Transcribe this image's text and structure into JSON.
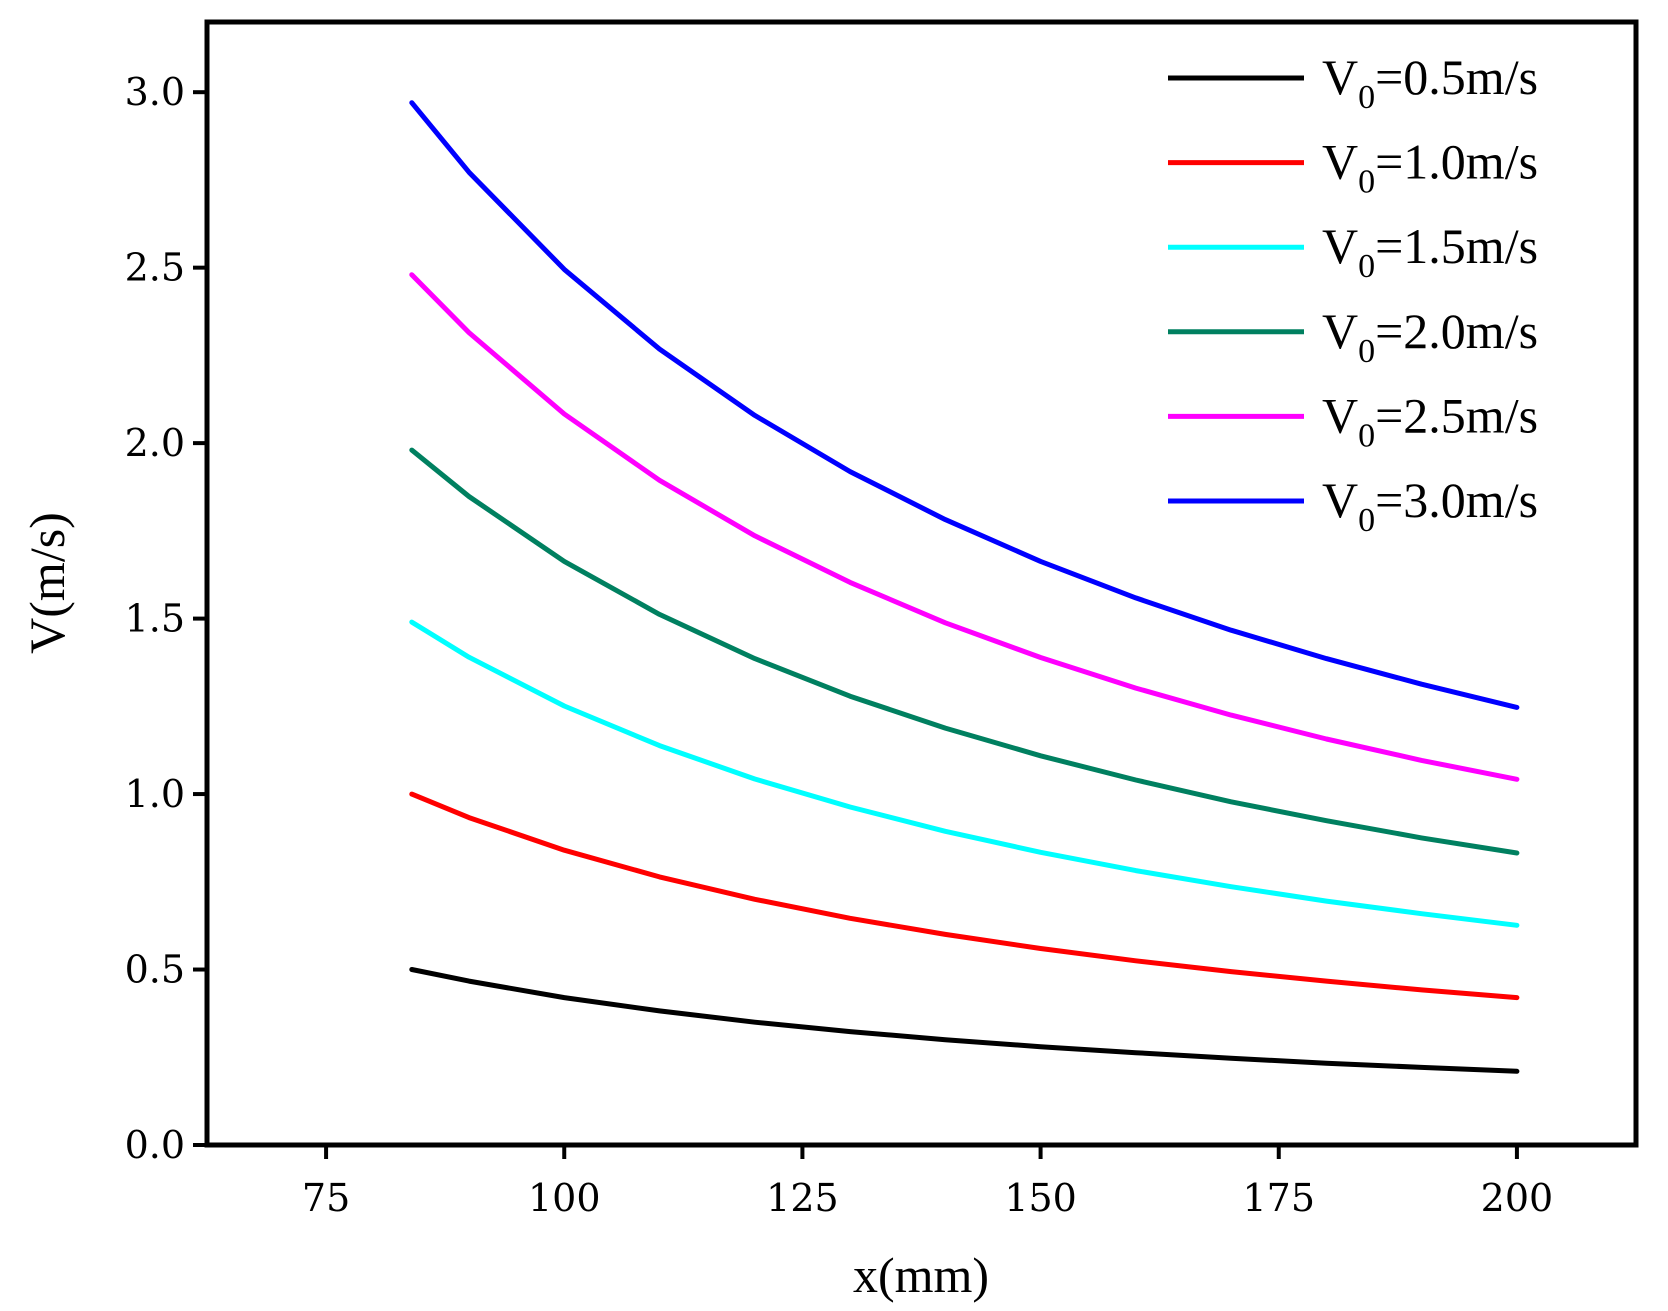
{
  "chart_data": {
    "type": "line",
    "title": "",
    "xlabel": "x(mm)",
    "ylabel": "V(m/s)",
    "xlim": [
      62.5,
      212.5
    ],
    "ylim": [
      0.0,
      3.2
    ],
    "xticks": [
      75,
      100,
      125,
      150,
      175,
      200
    ],
    "xtick_labels": [
      "75",
      "100",
      "125",
      "150",
      "175",
      "200"
    ],
    "yticks": [
      0.0,
      0.5,
      1.0,
      1.5,
      2.0,
      2.5,
      3.0
    ],
    "ytick_labels": [
      "0.0",
      "0.5",
      "1.0",
      "1.5",
      "2.0",
      "2.5",
      "3.0"
    ],
    "grid": false,
    "legend_position": "top-right",
    "x": [
      84,
      90,
      100,
      110,
      120,
      130,
      140,
      150,
      160,
      170,
      180,
      190,
      200
    ],
    "series": [
      {
        "name": "V0=0.5m/s",
        "label_main": "V",
        "label_sub": "0",
        "label_rest": "=0.5m/s",
        "color": "#000000",
        "values": [
          0.5,
          0.467,
          0.42,
          0.382,
          0.35,
          0.323,
          0.3,
          0.28,
          0.263,
          0.247,
          0.233,
          0.221,
          0.21
        ]
      },
      {
        "name": "V0=1.0m/s",
        "label_main": "V",
        "label_sub": "0",
        "label_rest": "=1.0m/s",
        "color": "#ff0000",
        "values": [
          1.0,
          0.933,
          0.84,
          0.764,
          0.7,
          0.646,
          0.6,
          0.56,
          0.525,
          0.494,
          0.467,
          0.442,
          0.42
        ]
      },
      {
        "name": "V0=1.5m/s",
        "label_main": "V",
        "label_sub": "0",
        "label_rest": "=1.5m/s",
        "color": "#00ffff",
        "values": [
          1.49,
          1.39,
          1.251,
          1.138,
          1.043,
          0.963,
          0.894,
          0.834,
          0.782,
          0.736,
          0.695,
          0.659,
          0.626
        ]
      },
      {
        "name": "V0=2.0m/s",
        "label_main": "V",
        "label_sub": "0",
        "label_rest": "=2.0m/s",
        "color": "#008060",
        "values": [
          1.98,
          1.848,
          1.663,
          1.512,
          1.386,
          1.279,
          1.188,
          1.109,
          1.04,
          0.978,
          0.924,
          0.875,
          0.832
        ]
      },
      {
        "name": "V0=2.5m/s",
        "label_main": "V",
        "label_sub": "0",
        "label_rest": "=2.5m/s",
        "color": "#ff00ff",
        "values": [
          2.48,
          2.315,
          2.083,
          1.894,
          1.736,
          1.603,
          1.488,
          1.389,
          1.302,
          1.225,
          1.157,
          1.096,
          1.042
        ]
      },
      {
        "name": "V0=3.0m/s",
        "label_main": "V",
        "label_sub": "0",
        "label_rest": "=3.0m/s",
        "color": "#0000ff",
        "values": [
          2.97,
          2.772,
          2.495,
          2.268,
          2.079,
          1.919,
          1.782,
          1.663,
          1.559,
          1.467,
          1.386,
          1.313,
          1.247
        ]
      }
    ]
  }
}
